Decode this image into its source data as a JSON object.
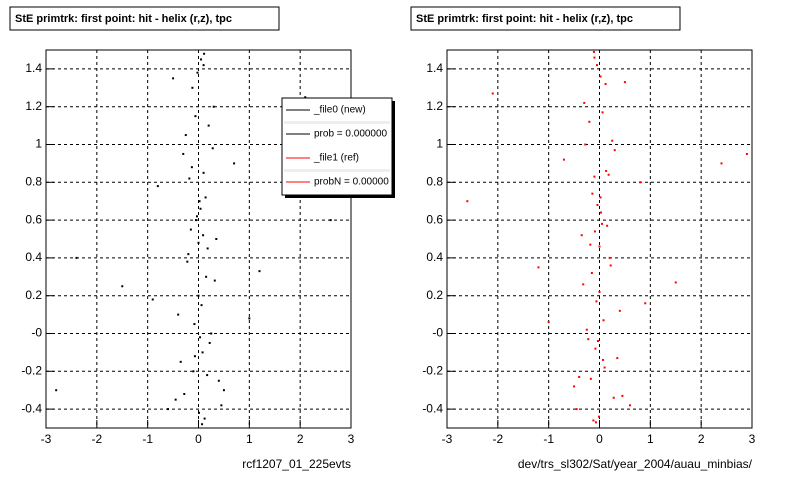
{
  "chart_data": [
    {
      "type": "scatter",
      "title": "StE primtrk: first point: hit - helix (r,z), tpc",
      "x_label": "rcf1207_01_225evts",
      "color": "#000000",
      "xlim": [
        -3,
        3
      ],
      "ylim": [
        -0.5,
        1.5
      ],
      "xticks": [
        -3,
        -2,
        -1,
        0,
        1,
        2,
        3
      ],
      "yticks": [
        -0.4,
        -0.2,
        {
          "value": 0,
          "label": "-0"
        },
        0.2,
        0.4,
        0.6,
        0.8,
        1,
        1.2,
        1.4
      ],
      "grid": true,
      "x": [
        0.05,
        -0.12,
        0.2,
        -0.3,
        0.1,
        0.02,
        -0.05,
        0.35,
        -0.2,
        0.15,
        0.0,
        -0.4,
        0.25,
        0.08,
        -0.1,
        0.5,
        -0.6,
        0.12,
        -0.02,
        0.3,
        -0.25,
        0.7,
        -0.8,
        0.04,
        -0.15,
        0.18,
        1.2,
        -1.5,
        0.06,
        -0.08,
        0.22,
        -0.35,
        0.4,
        -0.45,
        0.01,
        2.1,
        -2.4,
        0.1,
        -0.06,
        0.28,
        -0.18,
        0.14,
        -0.03,
        0.09,
        -0.22,
        0.32,
        -0.9,
        1.0,
        0.03,
        -0.07,
        0.17,
        -0.28,
        0.45,
        -0.5,
        2.6,
        -2.8,
        0.11,
        -0.13,
        0.0,
        0.07
      ],
      "y": [
        1.45,
        1.3,
        1.1,
        0.95,
        0.85,
        0.7,
        0.6,
        0.5,
        0.42,
        0.3,
        0.2,
        0.1,
        0.0,
        -0.1,
        -0.2,
        -0.3,
        -0.4,
        -0.45,
        1.38,
        1.2,
        1.05,
        0.9,
        0.78,
        0.66,
        0.55,
        0.45,
        0.33,
        0.25,
        0.15,
        0.05,
        -0.05,
        -0.15,
        -0.25,
        -0.35,
        -0.42,
        1.25,
        0.4,
        1.42,
        1.15,
        0.98,
        0.82,
        0.72,
        0.62,
        0.52,
        0.38,
        0.28,
        0.18,
        0.08,
        -0.02,
        -0.12,
        -0.22,
        -0.32,
        -0.38,
        1.35,
        0.6,
        -0.3,
        1.48,
        0.88,
        0.48,
        -0.48
      ],
      "legend": [
        {
          "label": "_file0 (new)",
          "color": "#000000"
        },
        {
          "label": "prob = 0.000000",
          "color": "#000000"
        },
        {
          "label": "_file1 (ref)",
          "color": "#ff0000"
        },
        {
          "label": "probN = 0.00000",
          "color": "#ff0000"
        }
      ]
    },
    {
      "type": "scatter",
      "title": "StE primtrk: first point: hit - helix (r,z), tpc",
      "x_label": "dev/trs_sl302/Sat/year_2004/auau_minbias/",
      "color": "#ff0000",
      "xlim": [
        -3,
        3
      ],
      "ylim": [
        -0.5,
        1.5
      ],
      "xticks": [
        -3,
        -2,
        -1,
        0,
        1,
        2,
        3
      ],
      "yticks": [
        -0.4,
        -0.2,
        {
          "value": 0,
          "label": "-0"
        },
        0.2,
        0.4,
        0.6,
        0.8,
        1,
        1.2,
        1.4
      ],
      "grid": true,
      "x": [
        -0.05,
        0.12,
        -0.2,
        0.3,
        -0.1,
        0.02,
        0.05,
        -0.35,
        0.2,
        -0.15,
        0.0,
        0.4,
        -0.25,
        -0.08,
        0.1,
        -0.5,
        0.6,
        -0.12,
        0.02,
        -0.3,
        0.25,
        -0.7,
        0.8,
        -0.04,
        0.15,
        -0.18,
        -1.2,
        1.5,
        -0.06,
        0.08,
        -0.22,
        0.35,
        -0.4,
        0.45,
        -0.01,
        -2.1,
        2.4,
        -0.1,
        0.06,
        -0.28,
        0.18,
        -0.14,
        0.03,
        -0.09,
        0.22,
        -0.32,
        0.9,
        -1.0,
        -0.03,
        0.07,
        -0.17,
        0.28,
        -0.45,
        0.5,
        -2.6,
        2.9,
        -0.11,
        0.13,
        0.0,
        -0.07
      ],
      "y": [
        1.42,
        1.32,
        1.12,
        0.97,
        0.83,
        0.72,
        0.58,
        0.52,
        0.4,
        0.32,
        0.22,
        0.12,
        0.02,
        -0.08,
        -0.18,
        -0.28,
        -0.38,
        -0.46,
        1.36,
        1.22,
        1.02,
        0.92,
        0.8,
        0.68,
        0.57,
        0.47,
        0.35,
        0.27,
        0.17,
        0.07,
        -0.03,
        -0.13,
        -0.23,
        -0.33,
        -0.44,
        1.27,
        0.9,
        1.46,
        1.17,
        1.0,
        0.84,
        0.74,
        0.64,
        0.54,
        0.36,
        0.26,
        0.16,
        0.06,
        -0.04,
        -0.14,
        -0.24,
        -0.34,
        -0.4,
        1.33,
        0.7,
        0.95,
        1.49,
        0.86,
        0.46,
        -0.47
      ]
    }
  ]
}
